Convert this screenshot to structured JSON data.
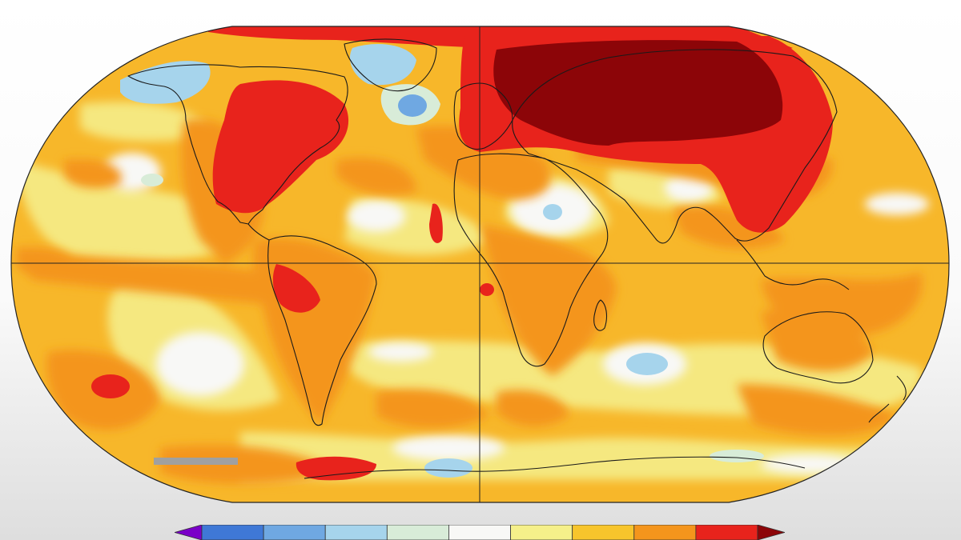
{
  "map": {
    "background_color": "#f7b72a",
    "grid": true,
    "projection": "robinson",
    "anomaly_regions": [
      {
        "name": "siberia-extreme",
        "level": 11
      },
      {
        "name": "eurasia-hot",
        "level": 10
      },
      {
        "name": "north-america-hot",
        "level": 10
      },
      {
        "name": "arctic-hot",
        "level": 10
      },
      {
        "name": "southern-ocean-hot",
        "level": 10
      },
      {
        "name": "pacific-hot-spot",
        "level": 10
      },
      {
        "name": "south-america-hot",
        "level": 10
      },
      {
        "name": "atlantic-cool",
        "level": 4
      },
      {
        "name": "alaska-cool",
        "level": 3
      },
      {
        "name": "greenland-cool",
        "level": 3
      },
      {
        "name": "indian-ocean-cool",
        "level": 3
      }
    ]
  },
  "legend": {
    "colors": [
      "#7a00c8",
      "#3f78d6",
      "#6fa8e2",
      "#a6d4ec",
      "#d8ecd8",
      "#f8f8f6",
      "#f5f08a",
      "#f7c52c",
      "#f4951c",
      "#e8231c",
      "#8c0508"
    ]
  }
}
